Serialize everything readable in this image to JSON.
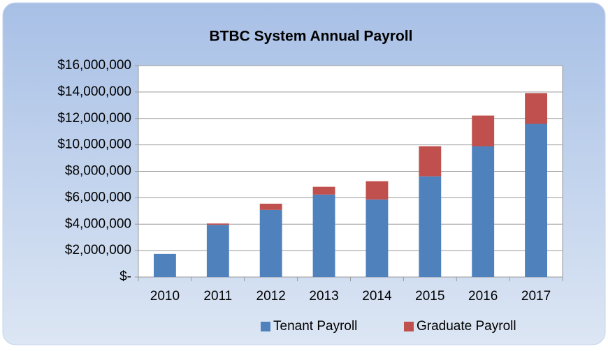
{
  "chart_data": {
    "type": "stacked_bar",
    "title": "BTBC System Annual Payroll",
    "categories": [
      "2010",
      "2011",
      "2012",
      "2013",
      "2014",
      "2015",
      "2016",
      "2017"
    ],
    "series": [
      {
        "name": "Tenant Payroll",
        "color": "#4f81bd",
        "values": [
          1750000,
          3950000,
          5080000,
          6240000,
          5870000,
          7620000,
          9900000,
          11590000
        ]
      },
      {
        "name": "Graduate Payroll",
        "color": "#c0504d",
        "values": [
          0,
          100000,
          470000,
          590000,
          1380000,
          2280000,
          2320000,
          2330000
        ]
      }
    ],
    "ylim": [
      0,
      16000000
    ],
    "yticks": [
      {
        "value": 0,
        "label": "$-"
      },
      {
        "value": 2000000,
        "label": "$2,000,000"
      },
      {
        "value": 4000000,
        "label": "$4,000,000"
      },
      {
        "value": 6000000,
        "label": "$6,000,000"
      },
      {
        "value": 8000000,
        "label": "$8,000,000"
      },
      {
        "value": 10000000,
        "label": "$10,000,000"
      },
      {
        "value": 12000000,
        "label": "$12,000,000"
      },
      {
        "value": 14000000,
        "label": "$14,000,000"
      },
      {
        "value": 16000000,
        "label": "$16,000,000"
      }
    ],
    "grid": true,
    "legend": "bottom"
  }
}
